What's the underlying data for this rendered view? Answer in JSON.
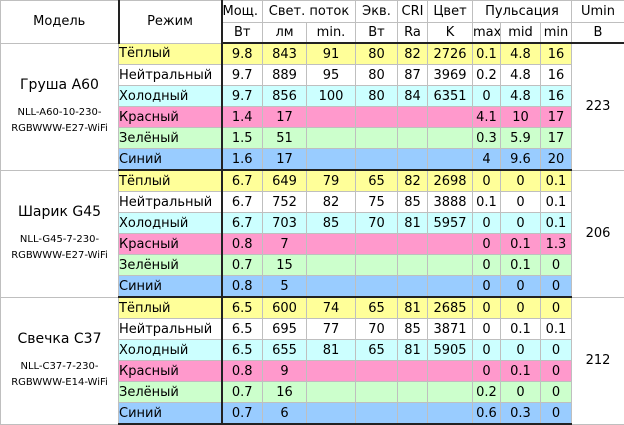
{
  "headers": {
    "model": "Модель",
    "mode": "Режим",
    "power": "Мощ.",
    "flux": "Свет. поток",
    "equiv": "Экв.",
    "cri": "CRI",
    "color": "Цвет",
    "ripple": "Пульсация",
    "umin": "Umin"
  },
  "units": {
    "power": "Вт",
    "flux_lm": "лм",
    "flux_min": "min.",
    "equiv": "Вт",
    "cri": "Ra",
    "color": "K",
    "ripple_max": "max",
    "ripple_mid": "mid",
    "ripple_min": "min",
    "umin": "В"
  },
  "colors": {
    "warm": "#ffff99",
    "neutral": "#ffffff",
    "cold": "#ccffff",
    "red": "#ff99cc",
    "green": "#ccffcc",
    "blue": "#99ccff"
  },
  "groups": [
    {
      "name": "Груша A60",
      "sku_line1": "NLL-A60-10-230-",
      "sku_line2": "RGBWWW-E27-WiFi",
      "umin": "223",
      "rows": [
        {
          "mode": "Тёплый",
          "power": "9.8",
          "lm": "843",
          "lm_min": "91",
          "equiv": "80",
          "cri": "82",
          "color": "2726",
          "rmax": "0.1",
          "rmid": "4.8",
          "rmin": "16"
        },
        {
          "mode": "Нейтральный",
          "power": "9.7",
          "lm": "889",
          "lm_min": "95",
          "equiv": "80",
          "cri": "87",
          "color": "3969",
          "rmax": "0.2",
          "rmid": "4.8",
          "rmin": "16"
        },
        {
          "mode": "Холодный",
          "power": "9.7",
          "lm": "856",
          "lm_min": "100",
          "equiv": "80",
          "cri": "84",
          "color": "6351",
          "rmax": "0",
          "rmid": "4.8",
          "rmin": "16"
        },
        {
          "mode": "Красный",
          "power": "1.4",
          "lm": "17",
          "lm_min": "",
          "equiv": "",
          "cri": "",
          "color": "",
          "rmax": "4.1",
          "rmid": "10",
          "rmin": "17"
        },
        {
          "mode": "Зелёный",
          "power": "1.5",
          "lm": "51",
          "lm_min": "",
          "equiv": "",
          "cri": "",
          "color": "",
          "rmax": "0.3",
          "rmid": "5.9",
          "rmin": "17"
        },
        {
          "mode": "Синий",
          "power": "1.6",
          "lm": "17",
          "lm_min": "",
          "equiv": "",
          "cri": "",
          "color": "",
          "rmax": "4",
          "rmid": "9.6",
          "rmin": "20"
        }
      ]
    },
    {
      "name": "Шарик G45",
      "sku_line1": "NLL-G45-7-230-",
      "sku_line2": "RGBWWW-E27-WiFi",
      "umin": "206",
      "rows": [
        {
          "mode": "Тёплый",
          "power": "6.7",
          "lm": "649",
          "lm_min": "79",
          "equiv": "65",
          "cri": "82",
          "color": "2698",
          "rmax": "0",
          "rmid": "0",
          "rmin": "0.1"
        },
        {
          "mode": "Нейтральный",
          "power": "6.7",
          "lm": "752",
          "lm_min": "82",
          "equiv": "75",
          "cri": "85",
          "color": "3888",
          "rmax": "0.1",
          "rmid": "0",
          "rmin": "0.1"
        },
        {
          "mode": "Холодный",
          "power": "6.7",
          "lm": "703",
          "lm_min": "85",
          "equiv": "70",
          "cri": "81",
          "color": "5957",
          "rmax": "0",
          "rmid": "0",
          "rmin": "0.1"
        },
        {
          "mode": "Красный",
          "power": "0.8",
          "lm": "7",
          "lm_min": "",
          "equiv": "",
          "cri": "",
          "color": "",
          "rmax": "0",
          "rmid": "0.1",
          "rmin": "1.3"
        },
        {
          "mode": "Зелёный",
          "power": "0.7",
          "lm": "15",
          "lm_min": "",
          "equiv": "",
          "cri": "",
          "color": "",
          "rmax": "0",
          "rmid": "0.1",
          "rmin": "0"
        },
        {
          "mode": "Синий",
          "power": "0.8",
          "lm": "5",
          "lm_min": "",
          "equiv": "",
          "cri": "",
          "color": "",
          "rmax": "0",
          "rmid": "0",
          "rmin": "0"
        }
      ]
    },
    {
      "name": "Свечка C37",
      "sku_line1": "NLL-C37-7-230-",
      "sku_line2": "RGBWWW-E14-WiFi",
      "umin": "212",
      "rows": [
        {
          "mode": "Тёплый",
          "power": "6.5",
          "lm": "600",
          "lm_min": "74",
          "equiv": "65",
          "cri": "81",
          "color": "2685",
          "rmax": "0",
          "rmid": "0",
          "rmin": "0"
        },
        {
          "mode": "Нейтральный",
          "power": "6.5",
          "lm": "695",
          "lm_min": "77",
          "equiv": "70",
          "cri": "85",
          "color": "3871",
          "rmax": "0",
          "rmid": "0.1",
          "rmin": "0.1"
        },
        {
          "mode": "Холодный",
          "power": "6.5",
          "lm": "655",
          "lm_min": "81",
          "equiv": "65",
          "cri": "81",
          "color": "5905",
          "rmax": "0",
          "rmid": "0",
          "rmin": "0"
        },
        {
          "mode": "Красный",
          "power": "0.8",
          "lm": "9",
          "lm_min": "",
          "equiv": "",
          "cri": "",
          "color": "",
          "rmax": "0",
          "rmid": "0.1",
          "rmin": "0"
        },
        {
          "mode": "Зелёный",
          "power": "0.7",
          "lm": "16",
          "lm_min": "",
          "equiv": "",
          "cri": "",
          "color": "",
          "rmax": "0.2",
          "rmid": "0",
          "rmin": "0"
        },
        {
          "mode": "Синий",
          "power": "0.7",
          "lm": "6",
          "lm_min": "",
          "equiv": "",
          "cri": "",
          "color": "",
          "rmax": "0.6",
          "rmid": "0.3",
          "rmin": "0"
        }
      ]
    }
  ]
}
